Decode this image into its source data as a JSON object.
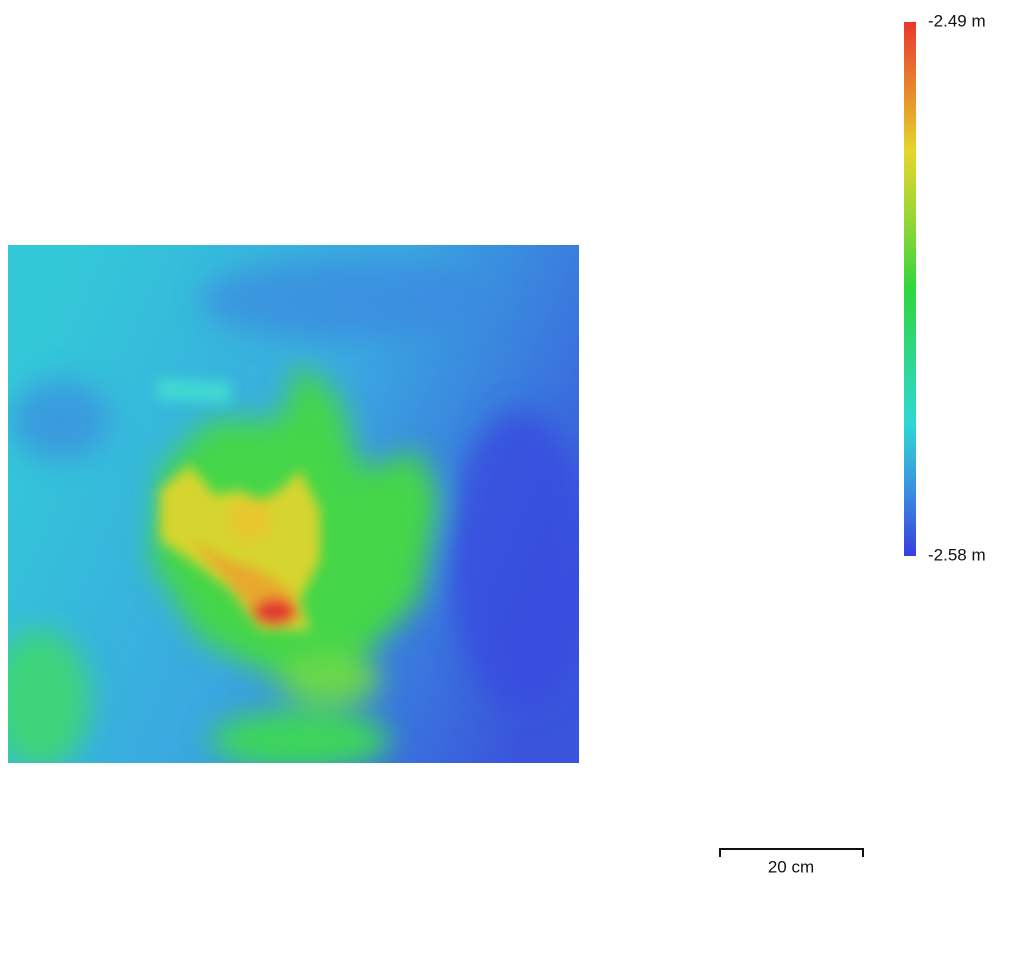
{
  "legend": {
    "max_label": "-2.49 m",
    "min_label": "-2.58 m"
  },
  "scale_bar": {
    "label": "20 cm"
  }
}
